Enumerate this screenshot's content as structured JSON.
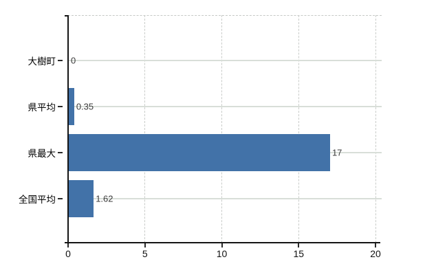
{
  "chart": {
    "colors": {
      "bar": "#4272a8",
      "axis": "#141414",
      "h_grid": "#d8ded8",
      "v_grid": "#c9ccc9",
      "category_label": "#000000",
      "value_label": "#3c3c3c"
    }
  },
  "chart_data": {
    "type": "bar",
    "orientation": "horizontal",
    "categories": [
      "大樹町",
      "県平均",
      "県最大",
      "全国平均"
    ],
    "values": [
      0,
      0.35,
      17,
      1.62
    ],
    "value_labels": [
      "0",
      "0.35",
      "17",
      "1.62"
    ],
    "x_tick_values": [
      0,
      5,
      10,
      15,
      20
    ],
    "x_tick_labels": [
      "0",
      "5",
      "10",
      "15",
      "20"
    ],
    "xlim": [
      0,
      20
    ],
    "grid": true,
    "legend": false,
    "title": ""
  }
}
